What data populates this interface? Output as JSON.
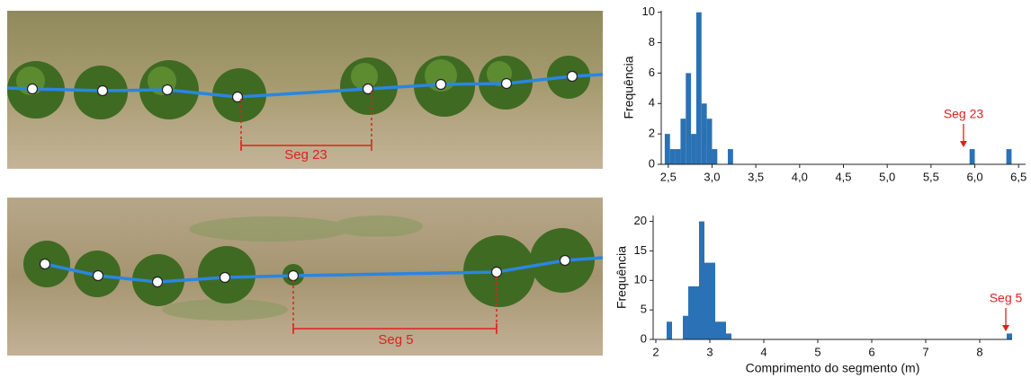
{
  "images": [
    {
      "label": "Seg 23"
    },
    {
      "label": "Seg 5"
    }
  ],
  "chart_data": [
    {
      "type": "histogram",
      "ylabel": "Frequência",
      "color": "#2a72b5",
      "bins": [
        2.46,
        2.52,
        2.58,
        2.64,
        2.7,
        2.76,
        2.82,
        2.88,
        2.94,
        3.0,
        3.06,
        3.12,
        3.18,
        3.24,
        3.3,
        3.36,
        3.42,
        3.48,
        3.54,
        3.6,
        3.66,
        3.72,
        3.78,
        3.84,
        3.9,
        3.96,
        4.02,
        4.08,
        4.14,
        4.2,
        4.26,
        4.32,
        4.38,
        4.44,
        4.5,
        4.56,
        4.62,
        4.68,
        4.74,
        4.8,
        4.86,
        4.92,
        4.98,
        5.04,
        5.1,
        5.16,
        5.22,
        5.28,
        5.34,
        5.4,
        5.46,
        5.52,
        5.58,
        5.64,
        5.7,
        5.76,
        5.82,
        5.88,
        5.94,
        6.0,
        6.06,
        6.12,
        6.18,
        6.24,
        6.3,
        6.36,
        6.42
      ],
      "values": [
        2,
        1,
        1,
        3,
        6,
        2,
        10,
        4,
        3,
        1,
        0,
        0,
        1,
        0,
        0,
        0,
        0,
        0,
        0,
        0,
        0,
        0,
        0,
        0,
        0,
        0,
        0,
        0,
        0,
        0,
        0,
        0,
        0,
        0,
        0,
        0,
        0,
        0,
        0,
        0,
        0,
        0,
        0,
        0,
        0,
        0,
        0,
        0,
        0,
        0,
        0,
        0,
        0,
        0,
        0,
        0,
        0,
        0,
        1,
        0,
        0,
        0,
        0,
        0,
        0,
        1
      ],
      "xlim": [
        2.42,
        6.58
      ],
      "ylim": [
        0,
        10.1
      ],
      "xticks": [
        {
          "value": 2.5,
          "label": "2,5"
        },
        {
          "value": 3.0,
          "label": "3,0"
        },
        {
          "value": 3.5,
          "label": "3,5"
        },
        {
          "value": 4.0,
          "label": "4,0"
        },
        {
          "value": 4.5,
          "label": "4,5"
        },
        {
          "value": 5.0,
          "label": "5,0"
        },
        {
          "value": 5.5,
          "label": "5,5"
        },
        {
          "value": 6.0,
          "label": "6,0"
        },
        {
          "value": 6.5,
          "label": "6,5"
        }
      ],
      "yticks": [
        0,
        2,
        4,
        6,
        8,
        10
      ],
      "annotation": "Seg 23"
    },
    {
      "type": "histogram",
      "ylabel": "Frequência",
      "xlabel": "Comprimento do segmento (m)",
      "color": "#2a72b5",
      "bins": [
        2.2,
        2.3,
        2.4,
        2.5,
        2.6,
        2.7,
        2.8,
        2.9,
        3.0,
        3.1,
        3.2,
        3.3,
        3.4,
        3.5,
        3.6,
        3.7,
        3.8,
        3.9,
        4.0,
        4.1,
        4.2,
        4.3,
        4.4,
        4.5,
        4.6,
        4.7,
        4.8,
        4.9,
        5.0,
        5.1,
        5.2,
        5.3,
        5.4,
        5.5,
        5.6,
        5.7,
        5.8,
        5.9,
        6.0,
        6.1,
        6.2,
        6.3,
        6.4,
        6.5,
        6.6,
        6.7,
        6.8,
        6.9,
        7.0,
        7.1,
        7.2,
        7.3,
        7.4,
        7.5,
        7.6,
        7.7,
        7.8,
        7.9,
        8.0,
        8.1,
        8.2,
        8.3,
        8.4,
        8.5,
        8.6
      ],
      "values": [
        3,
        0,
        0,
        4,
        9,
        9,
        20,
        13,
        13,
        3,
        3,
        1,
        0,
        0,
        0,
        0,
        0,
        0,
        0,
        0,
        0,
        0,
        0,
        0,
        0,
        0,
        0,
        0,
        0,
        0,
        0,
        0,
        0,
        0,
        0,
        0,
        0,
        0,
        0,
        0,
        0,
        0,
        0,
        0,
        0,
        0,
        0,
        0,
        0,
        0,
        0,
        0,
        0,
        0,
        0,
        0,
        0,
        0,
        0,
        0,
        0,
        0,
        0,
        1
      ],
      "xlim": [
        1.95,
        8.6
      ],
      "ylim": [
        0,
        21
      ],
      "xticks": [
        2,
        3,
        4,
        5,
        6,
        7,
        8
      ],
      "yticks": [
        0,
        5,
        10,
        15,
        20
      ],
      "annotation": "Seg 5"
    }
  ]
}
